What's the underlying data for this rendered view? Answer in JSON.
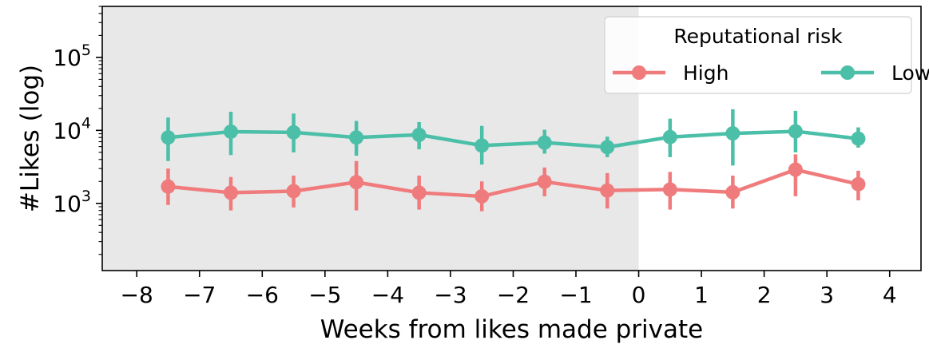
{
  "chart_data": {
    "type": "line",
    "xlabel": "Weeks from likes made private",
    "ylabel": "#Likes (log)",
    "yscale": "log",
    "xlim": [
      -8.55,
      4.5
    ],
    "ylim": [
      120,
      500000
    ],
    "xticks": [
      -8,
      -7,
      -6,
      -5,
      -4,
      -3,
      -2,
      -1,
      0,
      1,
      2,
      3,
      4
    ],
    "xtick_labels": [
      "−8",
      "−7",
      "−6",
      "−5",
      "−4",
      "−3",
      "−2",
      "−1",
      "0",
      "1",
      "2",
      "3",
      "4"
    ],
    "yticks": [
      {
        "value": 1000,
        "base": "10",
        "exp": "3"
      },
      {
        "value": 10000,
        "base": "10",
        "exp": "4"
      },
      {
        "value": 100000,
        "base": "10",
        "exp": "5"
      }
    ],
    "shaded_region": {
      "x_start": -8.55,
      "x_end": 0,
      "color": "#e8e8e8"
    },
    "legend": {
      "title": "Reputational risk",
      "placement": "top-right",
      "columns": 2
    },
    "x": [
      -7.5,
      -6.5,
      -5.5,
      -4.5,
      -3.5,
      -2.5,
      -1.5,
      -0.5,
      0.5,
      1.5,
      2.5,
      3.5
    ],
    "series": [
      {
        "name": "High",
        "color": "#f07b7c",
        "values": [
          1700,
          1400,
          1470,
          1950,
          1400,
          1250,
          1980,
          1500,
          1550,
          1420,
          2900,
          1830
        ],
        "err_low": [
          950,
          800,
          880,
          800,
          820,
          780,
          1250,
          850,
          820,
          850,
          1250,
          1100
        ],
        "err_high": [
          3000,
          2300,
          2400,
          3800,
          2400,
          2000,
          3100,
          2600,
          2700,
          2400,
          4700,
          2800
        ]
      },
      {
        "name": "Low",
        "color": "#4cbfa8",
        "values": [
          8000,
          9600,
          9400,
          8000,
          8700,
          6200,
          6800,
          5900,
          8100,
          9100,
          9700,
          7700
        ],
        "err_low": [
          3800,
          4600,
          5000,
          4500,
          5500,
          3400,
          4800,
          4300,
          4300,
          3300,
          5000,
          5800
        ],
        "err_high": [
          15000,
          18000,
          17000,
          13500,
          13000,
          11500,
          10200,
          8200,
          14500,
          19500,
          18500,
          11000
        ]
      }
    ]
  }
}
